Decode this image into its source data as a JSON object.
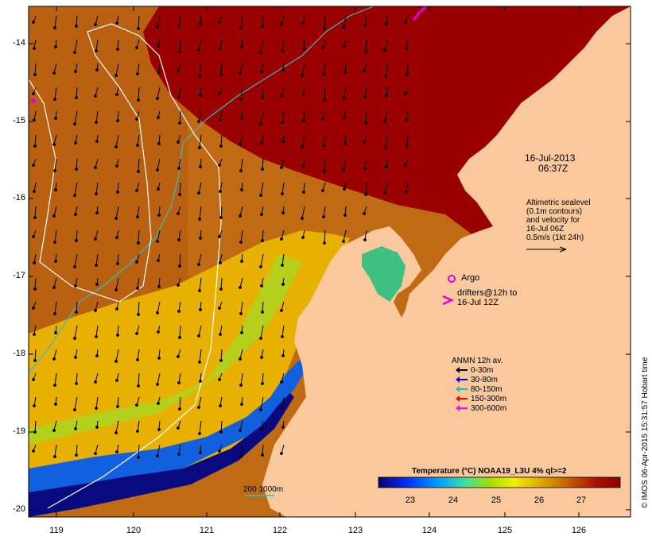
{
  "map": {
    "lat_ticks": [
      "-14",
      "-15",
      "-16",
      "-17",
      "-18",
      "-19",
      "-20"
    ],
    "lon_ticks": [
      "119",
      "120",
      "121",
      "122",
      "123",
      "124",
      "125",
      "126"
    ],
    "timestamp_date": "16-Jul-2013",
    "timestamp_time": "06:37Z",
    "altimetry_note": [
      "Altimetric sealevel",
      "(0.1m contours)",
      "and velocity for",
      "16-Jul 06Z",
      "0.5m/s (1kt 24h)"
    ],
    "argo_label": "Argo",
    "drifters_label": [
      "drifters@12h to",
      "16-Jul 12Z"
    ],
    "depth_contours_label": "200  1000m",
    "credit": "© IMOS 06-Apr-2015 15:31:57 Hobart time"
  },
  "legend": {
    "title": "ANMN 12h av.",
    "items": [
      {
        "label": "0-30m",
        "color": "#000000"
      },
      {
        "label": "30-80m",
        "color": "#0000ff"
      },
      {
        "label": "80-150m",
        "color": "#00c8c8"
      },
      {
        "label": "150-300m",
        "color": "#ff0000"
      },
      {
        "label": "300-600m",
        "color": "#ff00ff"
      }
    ]
  },
  "colorbar": {
    "title": "Temperature (°C) NOAA19_L3U 4% ql>=2",
    "ticks": [
      "23",
      "24",
      "25",
      "26",
      "27"
    ]
  },
  "colors": {
    "land": "#f9c99d",
    "sst_warmest": "#9a0000",
    "sst_coolest": "#08006e",
    "axis_line": "#000000"
  }
}
